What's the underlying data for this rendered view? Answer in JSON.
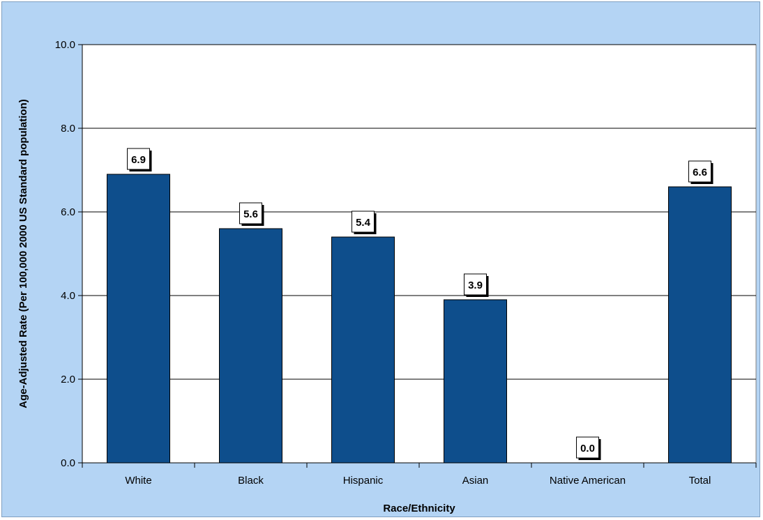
{
  "chart_data": {
    "type": "bar",
    "categories": [
      "White",
      "Black",
      "Hispanic",
      "Asian",
      "Native American",
      "Total"
    ],
    "series": [
      {
        "values": [
          6.9,
          5.6,
          5.4,
          3.9,
          0.0,
          6.6
        ]
      }
    ],
    "data_labels": [
      "6.9",
      "5.6",
      "5.4",
      "3.9",
      "0.0",
      "6.6"
    ],
    "xlabel": "Race/Ethnicity",
    "ylabel": "Age-Adjusted Rate (Per 100,000 2000 US Standard population)",
    "ylim": [
      0,
      10
    ],
    "yticks": [
      "0.0",
      "2.0",
      "4.0",
      "6.0",
      "8.0",
      "10.0"
    ],
    "grid": true,
    "legend": "none",
    "colors": {
      "bar": "#0e4e8c",
      "background": "#b4d4f4",
      "plot_area": "#ffffff",
      "gridline": "#000000"
    }
  }
}
